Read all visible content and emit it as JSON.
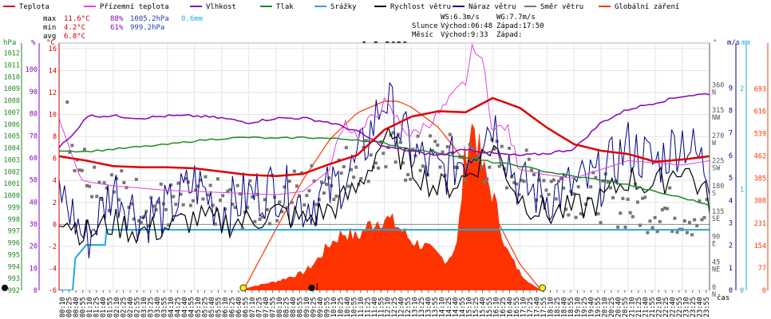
{
  "chart_data": {
    "type": "line",
    "title": "1.3.2020",
    "legend": [
      {
        "name": "Teplota",
        "color": "#e00000"
      },
      {
        "name": "Přízemní teplota",
        "color": "#dd44dd"
      },
      {
        "name": "Vlhkost",
        "color": "#8800bb"
      },
      {
        "name": "Tlak",
        "color": "#228822"
      },
      {
        "name": "Srážky",
        "color": "#22aadd"
      },
      {
        "name": "Rychlost větru",
        "color": "#000000"
      },
      {
        "name": "Náraz větru",
        "color": "#000088"
      },
      {
        "name": "Směr větru",
        "color": "#777777"
      },
      {
        "name": "Globální záření",
        "color": "#ff3300"
      }
    ],
    "stats": [
      {
        "label": "max",
        "temp": "11.6°C",
        "hum": "88%",
        "press": "1005.2hPa",
        "rain": "0.6mm"
      },
      {
        "label": "min",
        "temp": "4.2°C",
        "hum": "61%",
        "press": "999.2hPa",
        "rain": ""
      },
      {
        "label": "avg",
        "temp": "6.8°C",
        "hum": "",
        "press": "",
        "rain": ""
      }
    ],
    "wind_info": {
      "ws": "WS:6.3m/s",
      "wg": "WG:7.7m/s"
    },
    "sun": {
      "label": "Slunce",
      "rise": "Východ:06:48",
      "set": "Západ:17:50"
    },
    "moon": {
      "label": "Měsíc",
      "rise": "Východ:9:33",
      "set": "Západ:"
    },
    "axes": {
      "hpa_unit": "hPa",
      "pct_unit": "%",
      "celsius_unit": "°C",
      "hpa_ticks": [
        992,
        993,
        994,
        995,
        996,
        997,
        998,
        999,
        1000,
        1001,
        1002,
        1003,
        1004,
        1005,
        1006,
        1007,
        1008,
        1009,
        1010,
        1011,
        1012
      ],
      "pct_ticks": [
        0,
        10,
        20,
        30,
        40,
        50,
        60,
        70,
        80,
        90,
        100
      ],
      "temp_ticks": [
        -6,
        -4,
        -2,
        0,
        2,
        4,
        6,
        8,
        10,
        12,
        14,
        16
      ],
      "dir_unit": "°",
      "ms_unit": "m/s",
      "mm_unit": "mm",
      "dir_ticks": [
        {
          "v": 0,
          "l": "0",
          "c": "N"
        },
        {
          "v": 45,
          "l": "45",
          "c": "NE"
        },
        {
          "v": 90,
          "l": "90",
          "c": "E"
        },
        {
          "v": 135,
          "l": "135",
          "c": "SE"
        },
        {
          "v": 180,
          "l": "180",
          "c": "S"
        },
        {
          "v": 225,
          "l": "225",
          "c": "SW"
        },
        {
          "v": 270,
          "l": "270",
          "c": "W"
        },
        {
          "v": 315,
          "l": "315",
          "c": "NW"
        },
        {
          "v": 360,
          "l": "360",
          "c": "N"
        }
      ],
      "ms_ticks": [
        0,
        1,
        2,
        3,
        4,
        5,
        6,
        7,
        8,
        9
      ],
      "mm_ticks": [
        0,
        1,
        2
      ],
      "wm2_ticks": [
        0,
        77,
        154,
        231,
        308,
        385,
        462,
        539,
        616,
        693
      ],
      "x_label": "čas",
      "x_ticks": [
        "00:10",
        "00:25",
        "00:40",
        "00:55",
        "01:10",
        "01:25",
        "01:40",
        "01:55",
        "02:10",
        "02:25",
        "02:40",
        "02:55",
        "03:10",
        "03:25",
        "03:40",
        "03:55",
        "04:10",
        "04:25",
        "04:40",
        "04:55",
        "05:10",
        "05:25",
        "05:40",
        "05:55",
        "06:10",
        "06:25",
        "06:40",
        "06:55",
        "07:10",
        "07:25",
        "07:40",
        "07:55",
        "08:10",
        "08:25",
        "08:40",
        "08:55",
        "09:10",
        "09:25",
        "09:40",
        "09:55",
        "10:10",
        "10:25",
        "10:40",
        "10:55",
        "11:10",
        "11:25",
        "11:40",
        "11:55",
        "12:10",
        "12:25",
        "12:40",
        "12:55",
        "13:10",
        "13:25",
        "13:40",
        "13:55",
        "14:10",
        "14:25",
        "14:40",
        "14:55",
        "15:10",
        "15:25",
        "15:40",
        "15:55",
        "16:10",
        "16:25",
        "16:40",
        "16:55",
        "17:10",
        "17:25",
        "17:40",
        "17:55",
        "18:10",
        "18:25",
        "18:40",
        "18:55",
        "19:10",
        "19:25",
        "19:40",
        "19:55",
        "20:10",
        "20:25",
        "20:40",
        "20:55",
        "21:10",
        "21:25",
        "21:40",
        "21:55",
        "22:10",
        "22:25",
        "22:40",
        "22:55",
        "23:10",
        "23:25",
        "23:40",
        "23:55"
      ]
    },
    "series": {
      "teplota": {
        "x": [
          0,
          1,
          2,
          3,
          4,
          5,
          6,
          7,
          8,
          9,
          10,
          11,
          12,
          13,
          14,
          15,
          16,
          17,
          18,
          19,
          20,
          21,
          22,
          23,
          24
        ],
        "y": [
          6.2,
          5.8,
          5.3,
          5.2,
          5.2,
          5.1,
          4.8,
          4.5,
          4.4,
          4.6,
          5.5,
          6.3,
          8.6,
          9.8,
          10.3,
          10.2,
          11.5,
          10.6,
          8.8,
          7.3,
          6.7,
          6.4,
          5.7,
          5.9,
          6.2
        ]
      },
      "prizemni": {
        "x": [
          0,
          0.8,
          1,
          2,
          3,
          4,
          5,
          6,
          7,
          8,
          9,
          10,
          10.5,
          11,
          12,
          13,
          14,
          15,
          15.3,
          15.7,
          16,
          16.5,
          17,
          18,
          19,
          20,
          21,
          22,
          23,
          24
        ],
        "y": [
          9.6,
          4.1,
          3.9,
          3.5,
          3.3,
          3.1,
          3.0,
          2.9,
          2.8,
          2.7,
          3.0,
          5.0,
          9.5,
          8.0,
          11.0,
          8.0,
          10.0,
          13.0,
          16.5,
          14.0,
          8.5,
          9.0,
          5.0,
          4.5,
          4.2,
          5.0,
          5.8,
          5.6,
          5.4,
          5.8
        ]
      },
      "vlhkost": {
        "x": [
          0,
          0.5,
          1,
          2,
          3,
          4,
          5,
          6,
          7,
          8,
          9,
          10,
          11,
          12,
          13,
          14,
          15,
          16,
          17,
          18,
          19,
          20,
          21,
          22,
          23,
          24
        ],
        "y": [
          65,
          70,
          79,
          79,
          78,
          79,
          79,
          78,
          76,
          78,
          78,
          76,
          72,
          65,
          63,
          61,
          64,
          62,
          61,
          62,
          64,
          76,
          82,
          85,
          88,
          89
        ]
      },
      "tlak": {
        "x": [
          0,
          1,
          2,
          3,
          4,
          5,
          6,
          7,
          8,
          9,
          10,
          11,
          12,
          13,
          14,
          15,
          16,
          17,
          18,
          19,
          20,
          21,
          22,
          23,
          24
        ],
        "y": [
          1003.8,
          1003.7,
          1003.9,
          1004.1,
          1004.3,
          1004.6,
          1004.8,
          1004.9,
          1004.8,
          1004.9,
          1004.8,
          1004.7,
          1004.4,
          1003.9,
          1003.6,
          1003.2,
          1002.8,
          1002.5,
          1002.0,
          1001.6,
          1001.3,
          1000.9,
          1000.3,
          999.8,
          999.2
        ]
      },
      "srazky": {
        "x": [
          0,
          0.5,
          0.6,
          1.0,
          1.7,
          1.75,
          24
        ],
        "y": [
          0,
          0,
          0.32,
          0.45,
          0.45,
          0.6,
          0.6
        ]
      },
      "rychlost": {
        "x": [
          0,
          1,
          2,
          3,
          4,
          5,
          6,
          7,
          8,
          9,
          10,
          11,
          12,
          13,
          14,
          15,
          16,
          17,
          18,
          19,
          20,
          21,
          22,
          23,
          24
        ],
        "y": [
          3.4,
          2.5,
          3.0,
          2.6,
          2.8,
          3.2,
          3.0,
          3.1,
          3.5,
          3.1,
          3.6,
          4.5,
          6.8,
          5.5,
          4.5,
          5.0,
          6.5,
          4.1,
          3.4,
          3.6,
          4.0,
          5.0,
          4.6,
          5.6,
          4.0
        ]
      },
      "naraz": {
        "x": [
          0,
          1,
          2,
          3,
          4,
          5,
          6,
          7,
          8,
          9,
          10,
          11,
          12,
          13,
          14,
          15,
          16,
          17,
          18,
          19,
          20,
          21,
          22,
          23,
          24
        ],
        "y": [
          4.5,
          2.2,
          4.6,
          3.3,
          3.5,
          4.8,
          3.6,
          4.2,
          4.6,
          3.8,
          4.4,
          5.6,
          8.6,
          6.2,
          5.2,
          6.0,
          7.6,
          4.6,
          4.2,
          4.6,
          5.0,
          6.4,
          5.6,
          6.8,
          5.2
        ]
      },
      "smer": {
        "x": [
          0,
          1,
          2,
          3,
          4,
          5,
          6,
          7,
          8,
          9,
          10,
          11,
          12,
          13,
          14,
          15,
          16,
          17,
          18,
          19,
          20,
          21,
          22,
          23,
          24
        ],
        "y": [
          295,
          220,
          180,
          160,
          150,
          160,
          155,
          150,
          165,
          180,
          200,
          230,
          245,
          230,
          240,
          230,
          230,
          210,
          195,
          175,
          165,
          150,
          145,
          140,
          125
        ]
      },
      "zareni": {
        "x": [
          6.8,
          7,
          8,
          9,
          9.4,
          10,
          10.5,
          11,
          11.5,
          12,
          12.5,
          13,
          13.5,
          14,
          14.3,
          14.7,
          15.0,
          15.3,
          15.6,
          16.0,
          16.5,
          17.0,
          17.5,
          17.8
        ],
        "y": [
          0,
          10,
          30,
          60,
          90,
          160,
          200,
          180,
          230,
          250,
          220,
          170,
          150,
          120,
          100,
          160,
          480,
          580,
          420,
          330,
          140,
          60,
          15,
          0
        ]
      },
      "clear_sky": {
        "x": [
          6.8,
          8,
          9,
          10,
          11,
          12,
          12.5,
          13,
          14,
          15,
          16,
          17,
          17.8
        ],
        "y": [
          0,
          210,
          380,
          520,
          610,
          650,
          650,
          630,
          560,
          440,
          270,
          90,
          0
        ]
      }
    }
  }
}
